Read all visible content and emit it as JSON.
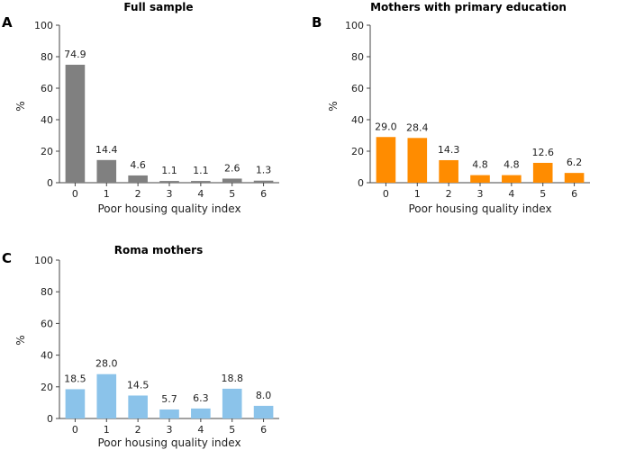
{
  "chart_data": [
    {
      "type": "bar",
      "panel": "A",
      "title": "Full sample",
      "xlabel": "Poor housing quality index",
      "ylabel": "%",
      "categories": [
        "0",
        "1",
        "2",
        "3",
        "4",
        "5",
        "6"
      ],
      "values": [
        74.9,
        14.4,
        4.6,
        1.1,
        1.1,
        2.6,
        1.3
      ],
      "value_labels": [
        "74.9",
        "14.4",
        "4.6",
        "1.1",
        "1.1",
        "2.6",
        "1.3"
      ],
      "ylim": [
        0,
        100
      ],
      "yticks": [
        "0",
        "20",
        "40",
        "60",
        "80",
        "100"
      ],
      "color": "#808080"
    },
    {
      "type": "bar",
      "panel": "B",
      "title": "Mothers with primary education",
      "xlabel": "Poor housing quality index",
      "ylabel": "%",
      "categories": [
        "0",
        "1",
        "2",
        "3",
        "4",
        "5",
        "6"
      ],
      "values": [
        29.0,
        28.4,
        14.3,
        4.8,
        4.8,
        12.6,
        6.2
      ],
      "value_labels": [
        "29.0",
        "28.4",
        "14.3",
        "4.8",
        "4.8",
        "12.6",
        "6.2"
      ],
      "ylim": [
        0,
        100
      ],
      "yticks": [
        "0",
        "20",
        "40",
        "60",
        "80",
        "100"
      ],
      "color": "#FF8C00"
    },
    {
      "type": "bar",
      "panel": "C",
      "title": "Roma mothers",
      "xlabel": "Poor housing quality index",
      "ylabel": "%",
      "categories": [
        "0",
        "1",
        "2",
        "3",
        "4",
        "5",
        "6"
      ],
      "values": [
        18.5,
        28.0,
        14.5,
        5.7,
        6.3,
        18.8,
        8.0
      ],
      "value_labels": [
        "18.5",
        "28.0",
        "14.5",
        "5.7",
        "6.3",
        "18.8",
        "8.0"
      ],
      "ylim": [
        0,
        100
      ],
      "yticks": [
        "0",
        "20",
        "40",
        "60",
        "80",
        "100"
      ],
      "color": "#8BC3EA"
    }
  ]
}
